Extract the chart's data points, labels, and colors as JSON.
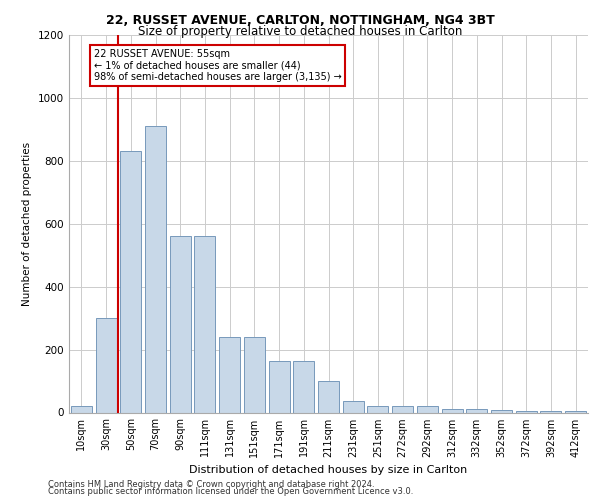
{
  "title1": "22, RUSSET AVENUE, CARLTON, NOTTINGHAM, NG4 3BT",
  "title2": "Size of property relative to detached houses in Carlton",
  "xlabel": "Distribution of detached houses by size in Carlton",
  "ylabel": "Number of detached properties",
  "categories": [
    "10sqm",
    "30sqm",
    "50sqm",
    "70sqm",
    "90sqm",
    "111sqm",
    "131sqm",
    "151sqm",
    "171sqm",
    "191sqm",
    "211sqm",
    "231sqm",
    "251sqm",
    "272sqm",
    "292sqm",
    "312sqm",
    "332sqm",
    "352sqm",
    "372sqm",
    "392sqm",
    "412sqm"
  ],
  "values": [
    20,
    300,
    830,
    910,
    560,
    560,
    240,
    240,
    165,
    165,
    100,
    35,
    20,
    20,
    20,
    10,
    10,
    7,
    5,
    5,
    5
  ],
  "bar_color": "#c8d8e8",
  "bar_edge_color": "#7799bb",
  "vline_color": "#cc0000",
  "annotation_text": "22 RUSSET AVENUE: 55sqm\n← 1% of detached houses are smaller (44)\n98% of semi-detached houses are larger (3,135) →",
  "annotation_box_color": "#ffffff",
  "annotation_box_edge": "#cc0000",
  "ylim": [
    0,
    1200
  ],
  "yticks": [
    0,
    200,
    400,
    600,
    800,
    1000,
    1200
  ],
  "footer1": "Contains HM Land Registry data © Crown copyright and database right 2024.",
  "footer2": "Contains public sector information licensed under the Open Government Licence v3.0.",
  "grid_color": "#cccccc"
}
